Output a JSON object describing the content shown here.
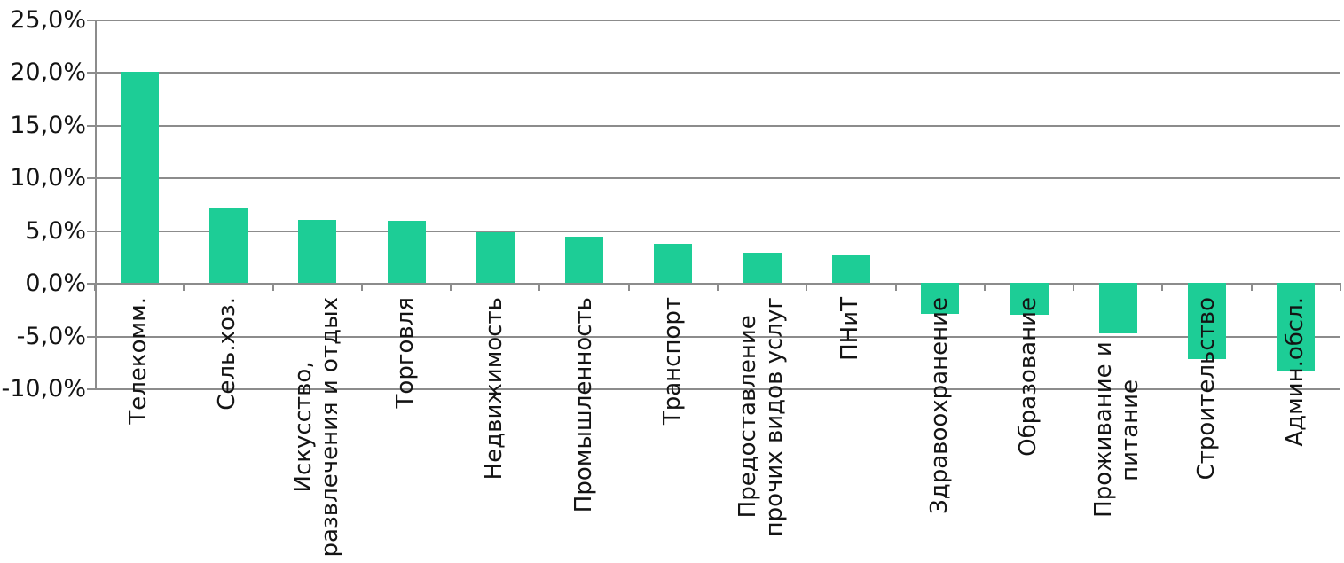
{
  "chart_data": {
    "type": "bar",
    "title": "",
    "categories": [
      "Телекомм.",
      "Сель.хоз.",
      "Искусство,\nразвлечения и отдых",
      "Торговля",
      "Недвижимость",
      "Промышленность",
      "Транспорт",
      "Предоставление\nпрочих видов услуг",
      "ПНиТ",
      "Здравоохранение",
      "Образование",
      "Проживание и питание",
      "Строительство",
      "Админ.обсл."
    ],
    "values": [
      20.0,
      7.1,
      6.0,
      5.9,
      4.8,
      4.4,
      3.7,
      2.9,
      2.6,
      -2.9,
      -3.0,
      -4.8,
      -7.2,
      -8.4
    ],
    "value_format": "percent",
    "ylim": [
      -10,
      25
    ],
    "ytick_step": 5,
    "ytick_values": [
      25,
      20,
      15,
      10,
      5,
      0,
      -5,
      -10
    ],
    "ytick_labels": [
      "25,0%",
      "20,0%",
      "15,0%",
      "10,0%",
      "5,0%",
      "0,0%",
      "-5,0%",
      "-10,0%"
    ],
    "xlabel": "",
    "ylabel": "",
    "legend": "none",
    "grid": true,
    "x_label_rotation": -90,
    "bar_color": "#1dcd96",
    "grid_color": "#8c8c8c",
    "text_color": "#141414",
    "background_color": "#ffffff"
  }
}
